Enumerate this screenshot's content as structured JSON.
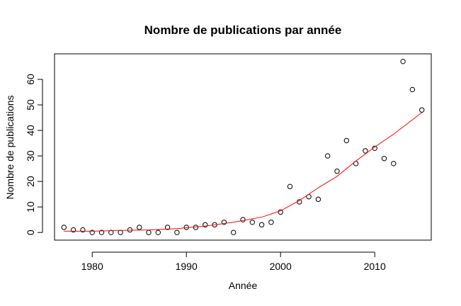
{
  "chart_data": {
    "type": "scatter",
    "title": "Nombre de publications par année",
    "xlabel": "Année",
    "ylabel": "Nombre de publications",
    "xlim": [
      1976,
      2016
    ],
    "ylim": [
      -3,
      70
    ],
    "x_ticks": [
      1980,
      1990,
      2000,
      2010
    ],
    "y_ticks": [
      0,
      10,
      20,
      30,
      40,
      50,
      60
    ],
    "grid": false,
    "legend": "none",
    "point_color": "#000000",
    "line_color": "#ff0000",
    "series": [
      {
        "kind": "points",
        "x": [
          1977,
          1978,
          1979,
          1980,
          1981,
          1982,
          1983,
          1984,
          1985,
          1986,
          1987,
          1988,
          1989,
          1990,
          1991,
          1992,
          1993,
          1994,
          1995,
          1996,
          1997,
          1998,
          1999,
          2000,
          2001,
          2002,
          2003,
          2004,
          2005,
          2006,
          2007,
          2008,
          2009,
          2010,
          2011,
          2012,
          2013,
          2014,
          2015
        ],
        "y": [
          2,
          1,
          1,
          0,
          0,
          0,
          0,
          1,
          2,
          0,
          0,
          2,
          0,
          2,
          2,
          3,
          3,
          4,
          0,
          5,
          4,
          3,
          4,
          8,
          18,
          12,
          14,
          13,
          30,
          24,
          36,
          27,
          32,
          33,
          29,
          27,
          67,
          56,
          48
        ]
      },
      {
        "kind": "smooth-line",
        "x": [
          1977,
          1980,
          1983,
          1986,
          1989,
          1992,
          1995,
          1998,
          2000,
          2002,
          2004,
          2006,
          2008,
          2010,
          2012,
          2015
        ],
        "y": [
          0.5,
          0.5,
          0.8,
          1.0,
          1.5,
          2.5,
          4.0,
          6.0,
          8.5,
          12.5,
          17.5,
          22.0,
          28.0,
          33.5,
          38.5,
          47.0
        ]
      }
    ]
  }
}
